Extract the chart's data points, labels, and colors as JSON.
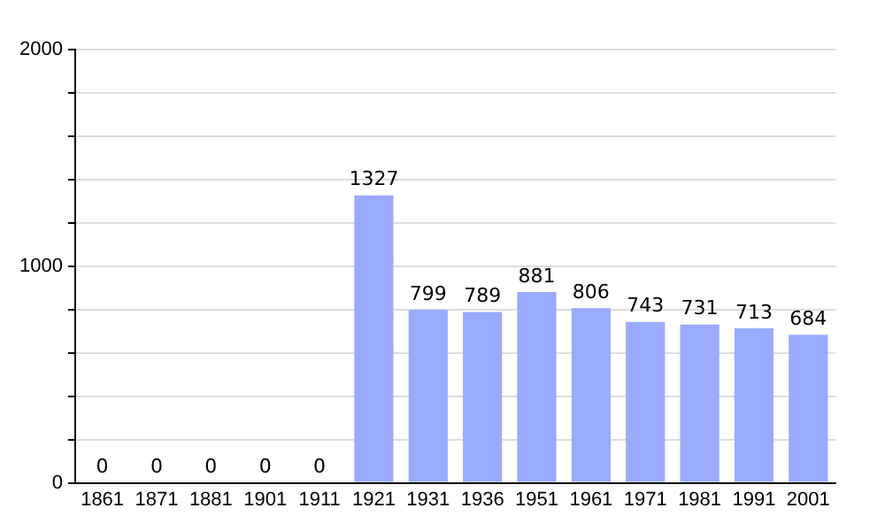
{
  "chart_data": {
    "type": "bar",
    "categories": [
      "1861",
      "1871",
      "1881",
      "1901",
      "1911",
      "1921",
      "1931",
      "1936",
      "1951",
      "1961",
      "1971",
      "1981",
      "1991",
      "2001"
    ],
    "values": [
      0,
      0,
      0,
      0,
      0,
      1327,
      799,
      789,
      881,
      806,
      743,
      731,
      713,
      684
    ],
    "color": "#99aaff",
    "data_labels": true,
    "grid": "y",
    "legend": false,
    "ylim": [
      0,
      2000
    ],
    "yticks": [
      0,
      {
        "value": 200,
        "label": null
      },
      {
        "value": 400,
        "label": null
      },
      {
        "value": 600,
        "label": null
      },
      {
        "value": 800,
        "label": null
      },
      1000,
      {
        "value": 1200,
        "label": null
      },
      {
        "value": 1400,
        "label": null
      },
      {
        "value": 1600,
        "label": null
      },
      {
        "value": 1800,
        "label": null
      },
      2000
    ]
  }
}
